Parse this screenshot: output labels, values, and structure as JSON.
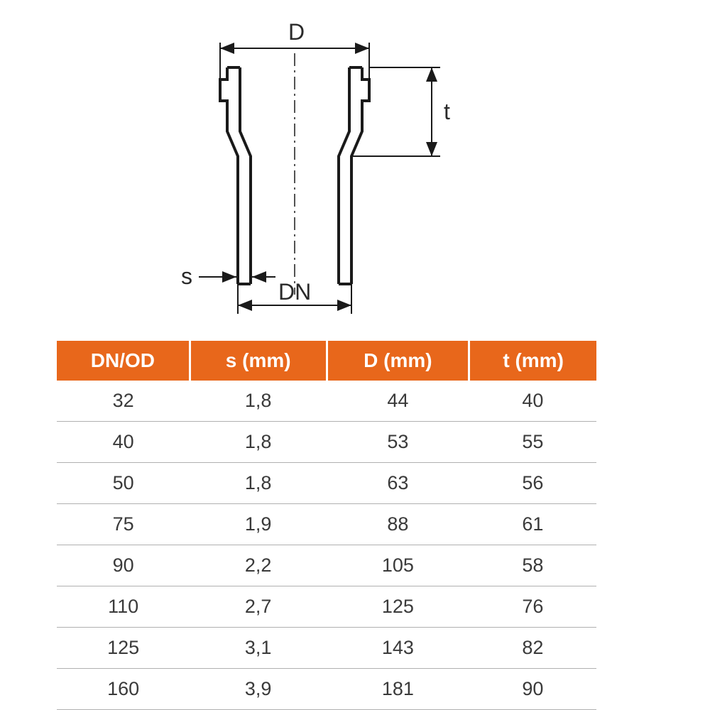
{
  "diagram": {
    "type": "technical-drawing",
    "labels": {
      "D": "D",
      "t": "t",
      "s": "s",
      "DN": "DN"
    },
    "colors": {
      "stroke": "#1a1a1a",
      "background": "#ffffff",
      "arrow_fill": "#1a1a1a",
      "text": "#2a2a2a"
    },
    "stroke_widths": {
      "outline": 4,
      "dimension_line": 2,
      "centerline": 1.5
    }
  },
  "table": {
    "type": "table",
    "header_bg": "#e8671b",
    "header_text_color": "#ffffff",
    "row_border_color": "#b0b0b0",
    "cell_text_color": "#3a3a3a",
    "font_size_header": 28,
    "font_size_body": 27,
    "columns": [
      "DN/OD",
      "s (mm)",
      "D (mm)",
      "t (mm)"
    ],
    "rows": [
      [
        "32",
        "1,8",
        "44",
        "40"
      ],
      [
        "40",
        "1,8",
        "53",
        "55"
      ],
      [
        "50",
        "1,8",
        "63",
        "56"
      ],
      [
        "75",
        "1,9",
        "88",
        "61"
      ],
      [
        "90",
        "2,2",
        "105",
        "58"
      ],
      [
        "110",
        "2,7",
        "125",
        "76"
      ],
      [
        "125",
        "3,1",
        "143",
        "82"
      ],
      [
        "160",
        "3,9",
        "181",
        "90"
      ]
    ]
  }
}
